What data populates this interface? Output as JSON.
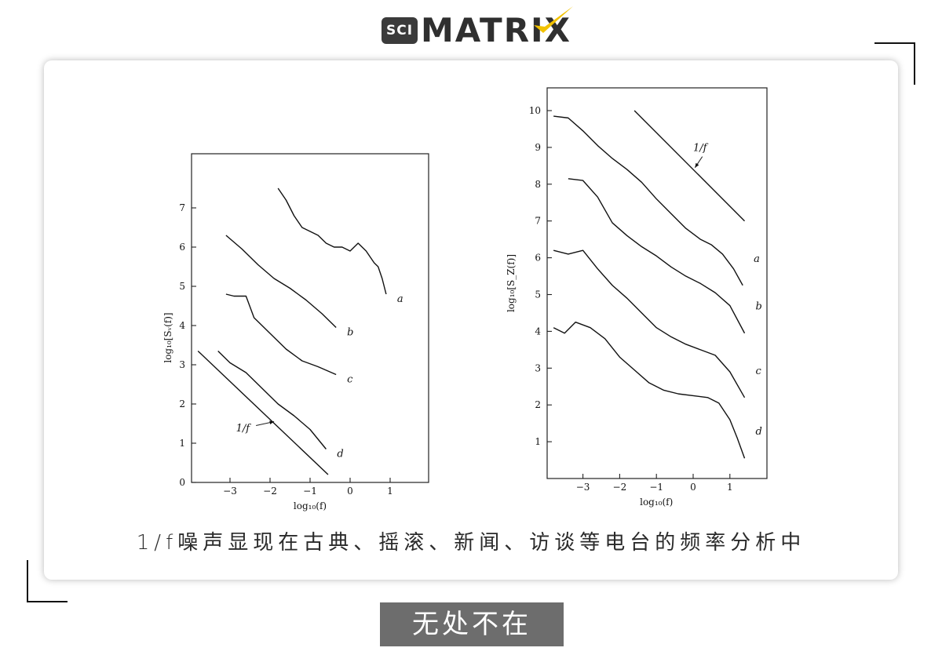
{
  "logo": {
    "prefix": "SCI",
    "name": "MATRIX"
  },
  "caption": "1/f噪声显现在古典、摇滚、新闻、访谈等电台的频率分析中",
  "tag": "无处不在",
  "chart_data": [
    {
      "type": "line",
      "xlabel": "log₁₀(f)",
      "ylabel": "log₁₀[Sᵥ(f)]",
      "xlim": [
        -4,
        2
      ],
      "ylim": [
        0,
        8
      ],
      "x_ticks": [
        -3,
        -2,
        -1,
        0,
        1
      ],
      "y_ticks": [
        0,
        1,
        2,
        3,
        4,
        5,
        6,
        7
      ],
      "grid": false,
      "reference": {
        "label": "1/f",
        "x": [
          -3.8,
          -0.55
        ],
        "y": [
          3.35,
          0.2
        ]
      },
      "series": [
        {
          "name": "a",
          "x": [
            -1.8,
            -1.6,
            -1.4,
            -1.2,
            -1.0,
            -0.8,
            -0.6,
            -0.4,
            -0.2,
            0.0,
            0.2,
            0.4,
            0.6,
            0.7,
            0.8,
            0.9
          ],
          "y": [
            7.5,
            7.2,
            6.8,
            6.5,
            6.4,
            6.3,
            6.1,
            6.0,
            6.0,
            5.9,
            6.1,
            5.9,
            5.6,
            5.5,
            5.2,
            4.8
          ]
        },
        {
          "name": "b",
          "x": [
            -3.1,
            -2.7,
            -2.3,
            -1.9,
            -1.5,
            -1.1,
            -0.7,
            -0.35
          ],
          "y": [
            6.3,
            5.95,
            5.55,
            5.2,
            4.95,
            4.65,
            4.3,
            3.95
          ]
        },
        {
          "name": "c",
          "x": [
            -3.1,
            -2.9,
            -2.6,
            -2.4,
            -2.0,
            -1.6,
            -1.2,
            -0.8,
            -0.35
          ],
          "y": [
            4.8,
            4.75,
            4.75,
            4.2,
            3.8,
            3.4,
            3.1,
            2.95,
            2.75
          ]
        },
        {
          "name": "d",
          "x": [
            -3.3,
            -3.0,
            -2.6,
            -2.2,
            -1.8,
            -1.4,
            -1.0,
            -0.6
          ],
          "y": [
            3.35,
            3.05,
            2.8,
            2.4,
            2.0,
            1.7,
            1.35,
            0.85
          ]
        }
      ]
    },
    {
      "type": "line",
      "xlabel": "log₁₀(f)",
      "ylabel": "log₁₀[S_Z(f)]",
      "xlim": [
        -4,
        2
      ],
      "ylim": [
        0,
        10
      ],
      "x_ticks": [
        -3,
        -2,
        -1,
        0,
        1
      ],
      "y_ticks": [
        1,
        2,
        3,
        4,
        5,
        6,
        7,
        8,
        9,
        10
      ],
      "grid": false,
      "reference": {
        "label": "1/f",
        "x": [
          -1.6,
          1.4
        ],
        "y": [
          10.0,
          7.0
        ]
      },
      "series": [
        {
          "name": "a",
          "x": [
            -3.8,
            -3.4,
            -3.0,
            -2.6,
            -2.2,
            -1.8,
            -1.4,
            -1.0,
            -0.6,
            -0.2,
            0.2,
            0.5,
            0.8,
            1.1,
            1.35
          ],
          "y": [
            9.85,
            9.8,
            9.45,
            9.05,
            8.7,
            8.4,
            8.05,
            7.6,
            7.2,
            6.8,
            6.5,
            6.35,
            6.1,
            5.7,
            5.25
          ]
        },
        {
          "name": "b",
          "x": [
            -3.4,
            -3.0,
            -2.6,
            -2.2,
            -1.8,
            -1.4,
            -1.0,
            -0.6,
            -0.2,
            0.2,
            0.6,
            1.0,
            1.4
          ],
          "y": [
            8.15,
            8.1,
            7.65,
            6.95,
            6.6,
            6.3,
            6.05,
            5.75,
            5.5,
            5.3,
            5.05,
            4.7,
            3.95
          ]
        },
        {
          "name": "c",
          "x": [
            -3.8,
            -3.4,
            -3.0,
            -2.6,
            -2.2,
            -1.8,
            -1.4,
            -1.0,
            -0.6,
            -0.2,
            0.2,
            0.6,
            1.0,
            1.4
          ],
          "y": [
            6.2,
            6.1,
            6.2,
            5.7,
            5.25,
            4.9,
            4.5,
            4.1,
            3.85,
            3.65,
            3.5,
            3.35,
            2.9,
            2.2
          ]
        },
        {
          "name": "d",
          "x": [
            -3.8,
            -3.5,
            -3.2,
            -2.8,
            -2.4,
            -2.0,
            -1.6,
            -1.2,
            -0.8,
            -0.4,
            0.0,
            0.4,
            0.7,
            1.0,
            1.2,
            1.4
          ],
          "y": [
            4.1,
            3.95,
            4.25,
            4.1,
            3.8,
            3.3,
            2.95,
            2.6,
            2.4,
            2.3,
            2.25,
            2.2,
            2.05,
            1.6,
            1.1,
            0.55
          ]
        }
      ]
    }
  ]
}
